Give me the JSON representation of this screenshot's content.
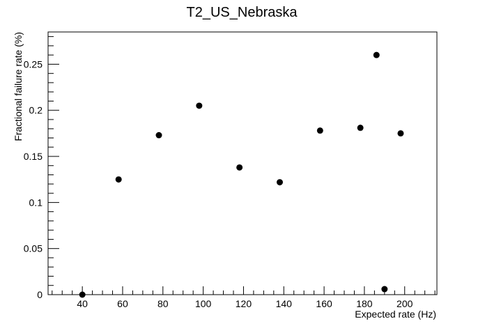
{
  "chart_data": {
    "type": "scatter",
    "title": "T2_US_Nebraska",
    "xlabel": "Expected rate (Hz)",
    "ylabel": "Fractional failure rate (%)",
    "xlim": [
      23,
      216
    ],
    "ylim": [
      0,
      0.285
    ],
    "x_ticks": [
      40,
      60,
      80,
      100,
      120,
      140,
      160,
      180,
      200
    ],
    "y_ticks": [
      0,
      0.05,
      0.1,
      0.15,
      0.2,
      0.25
    ],
    "x_tick_labels": [
      "40",
      "60",
      "80",
      "100",
      "120",
      "140",
      "160",
      "180",
      "200"
    ],
    "y_tick_labels": [
      "0",
      "0.05",
      "0.1",
      "0.15",
      "0.2",
      "0.25"
    ],
    "grid": false,
    "legend": "none",
    "marker_color": "#000000",
    "points": [
      {
        "x": 40,
        "y": 0.0
      },
      {
        "x": 58,
        "y": 0.125
      },
      {
        "x": 78,
        "y": 0.173
      },
      {
        "x": 98,
        "y": 0.205
      },
      {
        "x": 118,
        "y": 0.138
      },
      {
        "x": 138,
        "y": 0.122
      },
      {
        "x": 158,
        "y": 0.178
      },
      {
        "x": 178,
        "y": 0.181
      },
      {
        "x": 186,
        "y": 0.26
      },
      {
        "x": 190,
        "y": 0.006
      },
      {
        "x": 198,
        "y": 0.175
      }
    ]
  }
}
